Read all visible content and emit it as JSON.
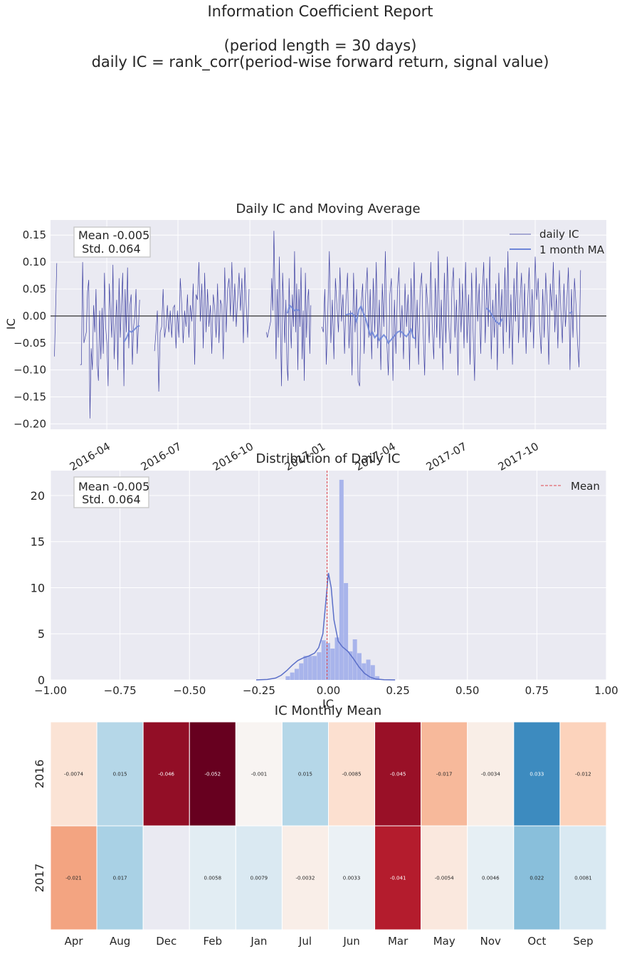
{
  "report": {
    "title_line1": "Information Coefficient Report",
    "title_line2": "(period length = 30 days)",
    "title_line3": "daily IC = rank_corr(period-wise forward return, signal value)"
  },
  "colors": {
    "panel_bg": "#EAEAF2",
    "grid": "#FFFFFF",
    "daily_ic_line": "#2B2F99",
    "ma_line": "#6E86D8",
    "hist_bar": "#A4B1EA",
    "kde_line": "#5B6FC8",
    "mean_line": "#E0474C",
    "zero_line": "#000000"
  },
  "chart_data": [
    {
      "type": "line",
      "title": "Daily IC and Moving Average",
      "ylabel": "IC",
      "xlabel": "",
      "xlim": [
        "2016-01-20",
        "2017-12-31"
      ],
      "ylim": [
        -0.21,
        0.178
      ],
      "yticks": [
        0.15,
        0.1,
        0.05,
        0.0,
        -0.05,
        -0.1,
        -0.15,
        -0.2
      ],
      "ytick_labels": [
        "0.15",
        "0.10",
        "0.05",
        "0.00",
        "−0.05",
        "−0.10",
        "−0.15",
        "−0.20"
      ],
      "xticks": [
        "2016-04-01",
        "2016-07-01",
        "2016-10-01",
        "2017-01-01",
        "2017-04-01",
        "2017-07-01",
        "2017-10-01"
      ],
      "xtick_labels": [
        "2016-04",
        "2016-07",
        "2016-10",
        "2017-01",
        "2017-04",
        "2017-07",
        "2017-10"
      ],
      "stats_box": {
        "line1": "Mean -0.005",
        "line2": " Std. 0.064"
      },
      "legend": [
        "daily IC",
        "1 month MA"
      ],
      "legend_position": "top-right",
      "grid": true,
      "series": [
        {
          "name": "daily IC",
          "segments": [
            {
              "start": "2016-01-25",
              "end": "2016-01-28",
              "values": [
                -0.075,
                0.098
              ]
            },
            {
              "start": "2016-02-27",
              "end": "2016-05-13",
              "values": [
                -0.09,
                -0.09,
                0.1,
                -0.05,
                -0.04,
                -0.03,
                0.045,
                0.067,
                -0.19,
                -0.06,
                -0.1,
                0.02,
                -0.03,
                0.05,
                -0.09,
                -0.12,
                0.01,
                -0.08,
                0.015,
                -0.07,
                0.08,
                -0.02,
                -0.05,
                -0.13,
                0.06,
                0.01,
                -0.04,
                0.095,
                -0.08,
                -0.02,
                0.03,
                -0.1,
                0.07,
                -0.04,
                0.02,
                0.08,
                -0.13,
                0.05,
                -0.03,
                0.09,
                -0.06,
                0.02,
                0.04,
                -0.09,
                -0.02,
                0.0,
                0.05,
                -0.07,
                -0.02,
                0.03
              ]
            },
            {
              "start": "2016-06-01",
              "end": "2016-09-30",
              "values": [
                -0.065,
                -0.03,
                0.01,
                -0.14,
                -0.03,
                -0.02,
                0.05,
                -0.04,
                -0.02,
                0.02,
                -0.03,
                0.01,
                -0.04,
                0.015,
                0.02,
                -0.06,
                0.01,
                -0.04,
                0.07,
                0.02,
                -0.05,
                0.01,
                -0.02,
                0.04,
                -0.04,
                0.02,
                -0.01,
                0.06,
                -0.09,
                0.04,
                0.03,
                0.1,
                -0.01,
                0.06,
                -0.06,
                0.08,
                -0.03,
                0.05,
                -0.02,
                0.02,
                -0.07,
                0.04,
                0.015,
                -0.04,
                0.06,
                -0.05,
                0.03,
                0.02,
                -0.08,
                0.09,
                -0.03,
                0.05,
                0.07,
                0.0,
                0.1,
                -0.01,
                0.06,
                -0.02,
                0.03,
                0.08,
                0.01,
                0.07,
                -0.05,
                0.09,
                0.02,
                -0.04,
                0.05
              ]
            },
            {
              "start": "2016-10-22",
              "end": "2016-12-18",
              "values": [
                -0.03,
                -0.04,
                -0.03,
                -0.02,
                -0.01,
                0.07,
                0.01,
                0.158,
                0.04,
                -0.08,
                0.05,
                -0.04,
                0.11,
                -0.02,
                -0.13,
                0.08,
                0.02,
                -0.05,
                0.03,
                -0.09,
                -0.12,
                0.07,
                -0.01,
                -0.06,
                0.04,
                -0.02,
                0.12,
                -0.03,
                0.06,
                -0.1,
                0.05,
                -0.02,
                0.09,
                -0.08,
                0.01,
                -0.12,
                0.08,
                -0.04,
                0.03,
                0.05,
                -0.07,
                0.02
              ]
            },
            {
              "start": "2017-01-01",
              "end": "2017-11-28",
              "values": [
                -0.02,
                -0.03,
                0.05,
                -0.09,
                0.01,
                0.12,
                -0.05,
                0.03,
                -0.08,
                0.07,
                0.02,
                -0.03,
                0.09,
                -0.01,
                0.04,
                -0.07,
                0.03,
                0.08,
                -0.06,
                0.01,
                -0.11,
                0.08,
                -0.03,
                0.05,
                -0.12,
                -0.13,
                0.02,
                0.06,
                -0.07,
                0.04,
                0.09,
                -0.04,
                0.05,
                -0.08,
                0.07,
                -0.03,
                0.1,
                -0.06,
                0.03,
                -0.1,
                0.06,
                -0.02,
                0.12,
                -0.05,
                -0.11,
                0.04,
                0.07,
                -0.12,
                0.03,
                -0.07,
                0.05,
                0.09,
                -0.04,
                0.02,
                -0.08,
                0.06,
                -0.02,
                0.04,
                -0.1,
                0.07,
                -0.04,
                0.1,
                -0.06,
                0.03,
                -0.09,
                0.05,
                0.08,
                -0.03,
                -0.11,
                0.06,
                0.02,
                -0.05,
                0.1,
                -0.02,
                -0.08,
                0.07,
                -0.04,
                0.12,
                -0.06,
                0.03,
                -0.1,
                0.08,
                -0.05,
                0.11,
                -0.02,
                -0.07,
                0.05,
                0.09,
                -0.04,
                0.03,
                -0.11,
                0.07,
                -0.03,
                0.06,
                -0.06,
                0.1,
                -0.05,
                0.04,
                -0.09,
                0.08,
                -0.03,
                -0.12,
                0.09,
                -0.01,
                0.06,
                -0.07,
                0.04,
                0.1,
                -0.05,
                0.07,
                -0.02,
                0.11,
                -0.08,
                0.03,
                -0.04,
                0.06,
                -0.1,
                0.08,
                -0.02,
                0.05,
                -0.07,
                0.09,
                -0.03,
                0.12,
                -0.06,
                0.04,
                -0.09,
                0.07,
                -0.01,
                0.1,
                -0.05,
                0.03,
                0.08,
                -0.04,
                0.06,
                -0.07,
                0.02,
                0.09,
                -0.03,
                0.05,
                -0.06,
                0.11,
                0.03,
                0.07,
                -0.02,
                -0.07,
                0.05,
                -0.04,
                0.08,
                0.02,
                -0.09,
                0.06,
                0.01,
                0.1,
                -0.03,
                0.04,
                -0.06,
                0.085,
                0.01,
                -0.05,
                0.06,
                -0.02,
                0.03,
                0.09,
                -0.1,
                0.05,
                -0.04,
                0.07,
                0.02,
                -0.05,
                -0.095,
                0.085
              ]
            }
          ]
        },
        {
          "name": "1 month MA",
          "segments": [
            {
              "start": "2016-04-23",
              "end": "2016-05-13",
              "values": [
                -0.048,
                -0.04,
                -0.028,
                -0.03,
                -0.025,
                -0.02,
                -0.018
              ]
            },
            {
              "start": "2016-11-18",
              "end": "2016-12-03",
              "values": [
                0.005,
                0.02,
                0.015,
                0.01,
                0.012,
                0.01
              ]
            },
            {
              "start": "2017-01-31",
              "end": "2017-05-01",
              "values": [
                0.002,
                0.003,
                0.004,
                0.005,
                0.0,
                -0.01,
                0.012,
                0.018,
                0.005,
                -0.005,
                -0.02,
                -0.035,
                -0.03,
                -0.04,
                -0.035,
                -0.045,
                -0.04,
                -0.035,
                -0.04,
                -0.05,
                -0.045,
                -0.04,
                -0.035,
                -0.03,
                -0.028,
                -0.03,
                -0.035,
                -0.038,
                -0.032,
                -0.025,
                -0.04,
                -0.042
              ]
            },
            {
              "start": "2017-07-30",
              "end": "2017-08-20",
              "values": [
                0.015,
                0.01,
                0.0,
                -0.01,
                -0.015,
                -0.005
              ]
            },
            {
              "start": "2017-11-14",
              "end": "2017-11-17",
              "values": [
                0.005,
                0.008
              ]
            }
          ]
        }
      ]
    },
    {
      "type": "bar",
      "title": "Distribution of Daily IC",
      "xlabel": "IC",
      "ylabel": "",
      "xlim": [
        -1.0,
        1.0
      ],
      "ylim": [
        0,
        22.7
      ],
      "xticks": [
        -1.0,
        -0.75,
        -0.5,
        -0.25,
        0.0,
        0.25,
        0.5,
        0.75,
        1.0
      ],
      "xtick_labels": [
        "−1.00",
        "−0.75",
        "−0.50",
        "−0.25",
        "0.00",
        "0.25",
        "0.50",
        "0.75",
        "1.00"
      ],
      "yticks": [
        0,
        5,
        10,
        15,
        20
      ],
      "ytick_labels": [
        "0",
        "5",
        "10",
        "15",
        "20"
      ],
      "stats_box": {
        "line1": "Mean -0.005",
        "line2": " Std. 0.064"
      },
      "legend": [
        "Mean"
      ],
      "legend_position": "top-right",
      "grid": true,
      "mean": -0.005,
      "hist_bin_width": 0.0161,
      "hist_bin_start": -0.154,
      "hist": [
        0.4,
        0.8,
        1.2,
        1.8,
        2.6,
        2.6,
        2.6,
        3.0,
        4.3,
        4.0,
        3.4,
        4.6,
        21.7,
        10.5,
        3.1,
        4.4,
        2.9,
        1.8,
        2.2,
        1.6,
        0.4
      ],
      "kde_x": [
        -0.26,
        -0.22,
        -0.19,
        -0.17,
        -0.15,
        -0.13,
        -0.11,
        -0.09,
        -0.07,
        -0.05,
        -0.035,
        -0.02,
        -0.01,
        0.0,
        0.01,
        0.02,
        0.035,
        0.05,
        0.07,
        0.09,
        0.11,
        0.13,
        0.15,
        0.17,
        0.2,
        0.24
      ],
      "kde_y": [
        0.0,
        0.05,
        0.2,
        0.5,
        1.0,
        1.6,
        2.1,
        2.4,
        2.6,
        2.9,
        3.5,
        5.0,
        8.3,
        11.6,
        10.0,
        6.5,
        4.2,
        3.6,
        3.1,
        2.3,
        1.4,
        0.7,
        0.3,
        0.1,
        0.02,
        0.0
      ]
    },
    {
      "type": "heatmap",
      "title": "IC Monthly Mean",
      "row_labels": [
        "2016",
        "2017"
      ],
      "col_labels": [
        "Apr",
        "Aug",
        "Dec",
        "Feb",
        "Jan",
        "Jul",
        "Jun",
        "Mar",
        "May",
        "Nov",
        "Oct",
        "Sep"
      ],
      "values": [
        [
          -0.0074,
          0.015,
          -0.046,
          -0.052,
          -0.001,
          0.015,
          -0.0085,
          -0.045,
          -0.017,
          -0.0034,
          0.033,
          -0.012
        ],
        [
          -0.021,
          0.017,
          null,
          0.0058,
          0.0079,
          -0.0032,
          0.0033,
          -0.041,
          -0.0054,
          0.0046,
          0.022,
          0.0081
        ]
      ],
      "annotations": [
        [
          "-0.0074",
          "0.015",
          "-0.046",
          "-0.052",
          "-0.001",
          "0.015",
          "-0.0085",
          "-0.045",
          "-0.017",
          "-0.0034",
          "0.033",
          "-0.012"
        ],
        [
          "-0.021",
          "0.017",
          "",
          "0.0058",
          "0.0079",
          "-0.0032",
          "0.0033",
          "-0.041",
          "-0.0054",
          "0.0046",
          "0.022",
          "0.0081"
        ]
      ],
      "colormap": "RdBu",
      "vmin": -0.052,
      "vmax": 0.052
    }
  ]
}
